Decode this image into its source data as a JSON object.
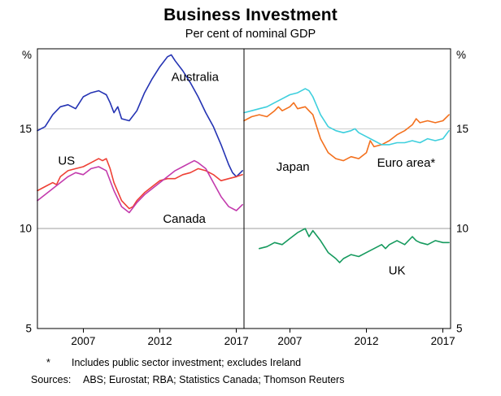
{
  "chart_data": {
    "type": "line",
    "title": "Business Investment",
    "subtitle": "Per cent of nominal GDP",
    "unit": "%",
    "ylim": [
      5,
      19
    ],
    "yticks": [
      5,
      10,
      15
    ],
    "gridlines": [
      10,
      15
    ],
    "xlim": [
      2004,
      2017.5
    ],
    "xticks": [
      2007,
      2012,
      2017
    ],
    "legend_position": "in-plot labels",
    "grid": true,
    "panels": [
      {
        "name": "left",
        "series": [
          {
            "name": "Australia",
            "color": "#2433b3",
            "points": [
              [
                2004,
                14.9
              ],
              [
                2004.5,
                15.1
              ],
              [
                2005,
                15.7
              ],
              [
                2005.5,
                16.1
              ],
              [
                2006,
                16.2
              ],
              [
                2006.5,
                16.0
              ],
              [
                2007,
                16.6
              ],
              [
                2007.5,
                16.8
              ],
              [
                2008,
                16.9
              ],
              [
                2008.5,
                16.7
              ],
              [
                2008.75,
                16.3
              ],
              [
                2009,
                15.8
              ],
              [
                2009.25,
                16.1
              ],
              [
                2009.5,
                15.5
              ],
              [
                2010,
                15.4
              ],
              [
                2010.5,
                15.9
              ],
              [
                2011,
                16.8
              ],
              [
                2011.5,
                17.5
              ],
              [
                2012,
                18.1
              ],
              [
                2012.5,
                18.6
              ],
              [
                2012.75,
                18.7
              ],
              [
                2013,
                18.4
              ],
              [
                2013.5,
                17.9
              ],
              [
                2014,
                17.3
              ],
              [
                2014.5,
                16.6
              ],
              [
                2015,
                15.8
              ],
              [
                2015.5,
                15.1
              ],
              [
                2016,
                14.2
              ],
              [
                2016.5,
                13.2
              ],
              [
                2016.75,
                12.8
              ],
              [
                2017,
                12.6
              ],
              [
                2017.4,
                12.9
              ]
            ]
          },
          {
            "name": "US",
            "color": "#ee4035",
            "points": [
              [
                2004,
                11.9
              ],
              [
                2004.5,
                12.1
              ],
              [
                2005,
                12.3
              ],
              [
                2005.25,
                12.2
              ],
              [
                2005.5,
                12.6
              ],
              [
                2006,
                12.9
              ],
              [
                2006.5,
                13.0
              ],
              [
                2007,
                13.1
              ],
              [
                2007.5,
                13.3
              ],
              [
                2008,
                13.5
              ],
              [
                2008.25,
                13.4
              ],
              [
                2008.5,
                13.5
              ],
              [
                2008.75,
                13.0
              ],
              [
                2009,
                12.3
              ],
              [
                2009.5,
                11.4
              ],
              [
                2010,
                11.0
              ],
              [
                2010.25,
                11.1
              ],
              [
                2010.5,
                11.4
              ],
              [
                2011,
                11.8
              ],
              [
                2011.5,
                12.1
              ],
              [
                2012,
                12.4
              ],
              [
                2012.5,
                12.5
              ],
              [
                2013,
                12.5
              ],
              [
                2013.5,
                12.7
              ],
              [
                2014,
                12.8
              ],
              [
                2014.5,
                13.0
              ],
              [
                2015,
                12.9
              ],
              [
                2015.5,
                12.7
              ],
              [
                2016,
                12.4
              ],
              [
                2016.5,
                12.5
              ],
              [
                2017,
                12.6
              ],
              [
                2017.4,
                12.7
              ]
            ]
          },
          {
            "name": "Canada",
            "color": "#c33bad",
            "points": [
              [
                2004,
                11.4
              ],
              [
                2004.5,
                11.7
              ],
              [
                2005,
                12.0
              ],
              [
                2005.5,
                12.3
              ],
              [
                2006,
                12.6
              ],
              [
                2006.5,
                12.8
              ],
              [
                2007,
                12.7
              ],
              [
                2007.5,
                13.0
              ],
              [
                2008,
                13.1
              ],
              [
                2008.5,
                12.9
              ],
              [
                2009,
                11.9
              ],
              [
                2009.5,
                11.1
              ],
              [
                2010,
                10.8
              ],
              [
                2010.5,
                11.3
              ],
              [
                2011,
                11.7
              ],
              [
                2011.5,
                12.0
              ],
              [
                2012,
                12.3
              ],
              [
                2012.5,
                12.6
              ],
              [
                2013,
                12.9
              ],
              [
                2013.5,
                13.1
              ],
              [
                2014,
                13.3
              ],
              [
                2014.25,
                13.4
              ],
              [
                2014.5,
                13.3
              ],
              [
                2015,
                13.0
              ],
              [
                2015.5,
                12.3
              ],
              [
                2016,
                11.6
              ],
              [
                2016.5,
                11.1
              ],
              [
                2017,
                10.9
              ],
              [
                2017.4,
                11.2
              ]
            ]
          }
        ],
        "labels": [
          {
            "text": "Australia",
            "x": 2014.3,
            "y": 17.6,
            "color": "#2433b3"
          },
          {
            "text": "US",
            "x": 2005.9,
            "y": 13.4,
            "color": "#ee4035"
          },
          {
            "text": "Canada",
            "x": 2013.6,
            "y": 10.5,
            "color": "#c33bad"
          }
        ]
      },
      {
        "name": "right",
        "series": [
          {
            "name": "Japan",
            "color": "#f3701d",
            "points": [
              [
                2004,
                15.4
              ],
              [
                2004.5,
                15.6
              ],
              [
                2005,
                15.7
              ],
              [
                2005.5,
                15.6
              ],
              [
                2006,
                15.9
              ],
              [
                2006.25,
                16.1
              ],
              [
                2006.5,
                15.9
              ],
              [
                2007,
                16.1
              ],
              [
                2007.25,
                16.3
              ],
              [
                2007.5,
                16.0
              ],
              [
                2008,
                16.1
              ],
              [
                2008.5,
                15.7
              ],
              [
                2009,
                14.5
              ],
              [
                2009.5,
                13.8
              ],
              [
                2010,
                13.5
              ],
              [
                2010.5,
                13.4
              ],
              [
                2011,
                13.6
              ],
              [
                2011.5,
                13.5
              ],
              [
                2012,
                13.8
              ],
              [
                2012.25,
                14.4
              ],
              [
                2012.5,
                14.1
              ],
              [
                2013,
                14.2
              ],
              [
                2013.5,
                14.4
              ],
              [
                2014,
                14.7
              ],
              [
                2014.5,
                14.9
              ],
              [
                2015,
                15.2
              ],
              [
                2015.25,
                15.5
              ],
              [
                2015.5,
                15.3
              ],
              [
                2016,
                15.4
              ],
              [
                2016.5,
                15.3
              ],
              [
                2017,
                15.4
              ],
              [
                2017.4,
                15.7
              ]
            ]
          },
          {
            "name": "Euro area*",
            "color": "#3ecfdd",
            "points": [
              [
                2004,
                15.8
              ],
              [
                2004.5,
                15.9
              ],
              [
                2005,
                16.0
              ],
              [
                2005.5,
                16.1
              ],
              [
                2006,
                16.3
              ],
              [
                2006.5,
                16.5
              ],
              [
                2007,
                16.7
              ],
              [
                2007.5,
                16.8
              ],
              [
                2008,
                17.0
              ],
              [
                2008.25,
                16.9
              ],
              [
                2008.5,
                16.6
              ],
              [
                2009,
                15.7
              ],
              [
                2009.5,
                15.1
              ],
              [
                2010,
                14.9
              ],
              [
                2010.5,
                14.8
              ],
              [
                2011,
                14.9
              ],
              [
                2011.25,
                15.0
              ],
              [
                2011.5,
                14.8
              ],
              [
                2012,
                14.6
              ],
              [
                2012.5,
                14.4
              ],
              [
                2013,
                14.2
              ],
              [
                2013.5,
                14.2
              ],
              [
                2014,
                14.3
              ],
              [
                2014.5,
                14.3
              ],
              [
                2015,
                14.4
              ],
              [
                2015.5,
                14.3
              ],
              [
                2016,
                14.5
              ],
              [
                2016.5,
                14.4
              ],
              [
                2017,
                14.5
              ],
              [
                2017.4,
                14.9
              ]
            ]
          },
          {
            "name": "UK",
            "color": "#169a5e",
            "points": [
              [
                2005,
                9.0
              ],
              [
                2005.5,
                9.1
              ],
              [
                2006,
                9.3
              ],
              [
                2006.5,
                9.2
              ],
              [
                2007,
                9.5
              ],
              [
                2007.5,
                9.8
              ],
              [
                2008,
                10.0
              ],
              [
                2008.25,
                9.6
              ],
              [
                2008.5,
                9.9
              ],
              [
                2009,
                9.4
              ],
              [
                2009.5,
                8.8
              ],
              [
                2010,
                8.5
              ],
              [
                2010.25,
                8.3
              ],
              [
                2010.5,
                8.5
              ],
              [
                2011,
                8.7
              ],
              [
                2011.5,
                8.6
              ],
              [
                2012,
                8.8
              ],
              [
                2012.5,
                9.0
              ],
              [
                2013,
                9.2
              ],
              [
                2013.25,
                9.0
              ],
              [
                2013.5,
                9.2
              ],
              [
                2014,
                9.4
              ],
              [
                2014.5,
                9.2
              ],
              [
                2015,
                9.6
              ],
              [
                2015.25,
                9.4
              ],
              [
                2015.5,
                9.3
              ],
              [
                2016,
                9.2
              ],
              [
                2016.5,
                9.4
              ],
              [
                2017,
                9.3
              ],
              [
                2017.4,
                9.3
              ]
            ]
          }
        ],
        "labels": [
          {
            "text": "Japan",
            "x": 2007.2,
            "y": 13.1,
            "color": "#f3701d"
          },
          {
            "text": "Euro area*",
            "x": 2014.6,
            "y": 13.3,
            "color": "#3ecfdd"
          },
          {
            "text": "UK",
            "x": 2014.0,
            "y": 7.9,
            "color": "#169a5e"
          }
        ]
      }
    ]
  },
  "footnote": {
    "marker": "*",
    "text": "Includes public sector investment; excludes Ireland"
  },
  "sources": {
    "label": "Sources:",
    "text": "ABS; Eurostat; RBA; Statistics Canada; Thomson Reuters"
  },
  "style": {
    "grid_color": "#9c9c9c",
    "frame_color": "#000000"
  }
}
